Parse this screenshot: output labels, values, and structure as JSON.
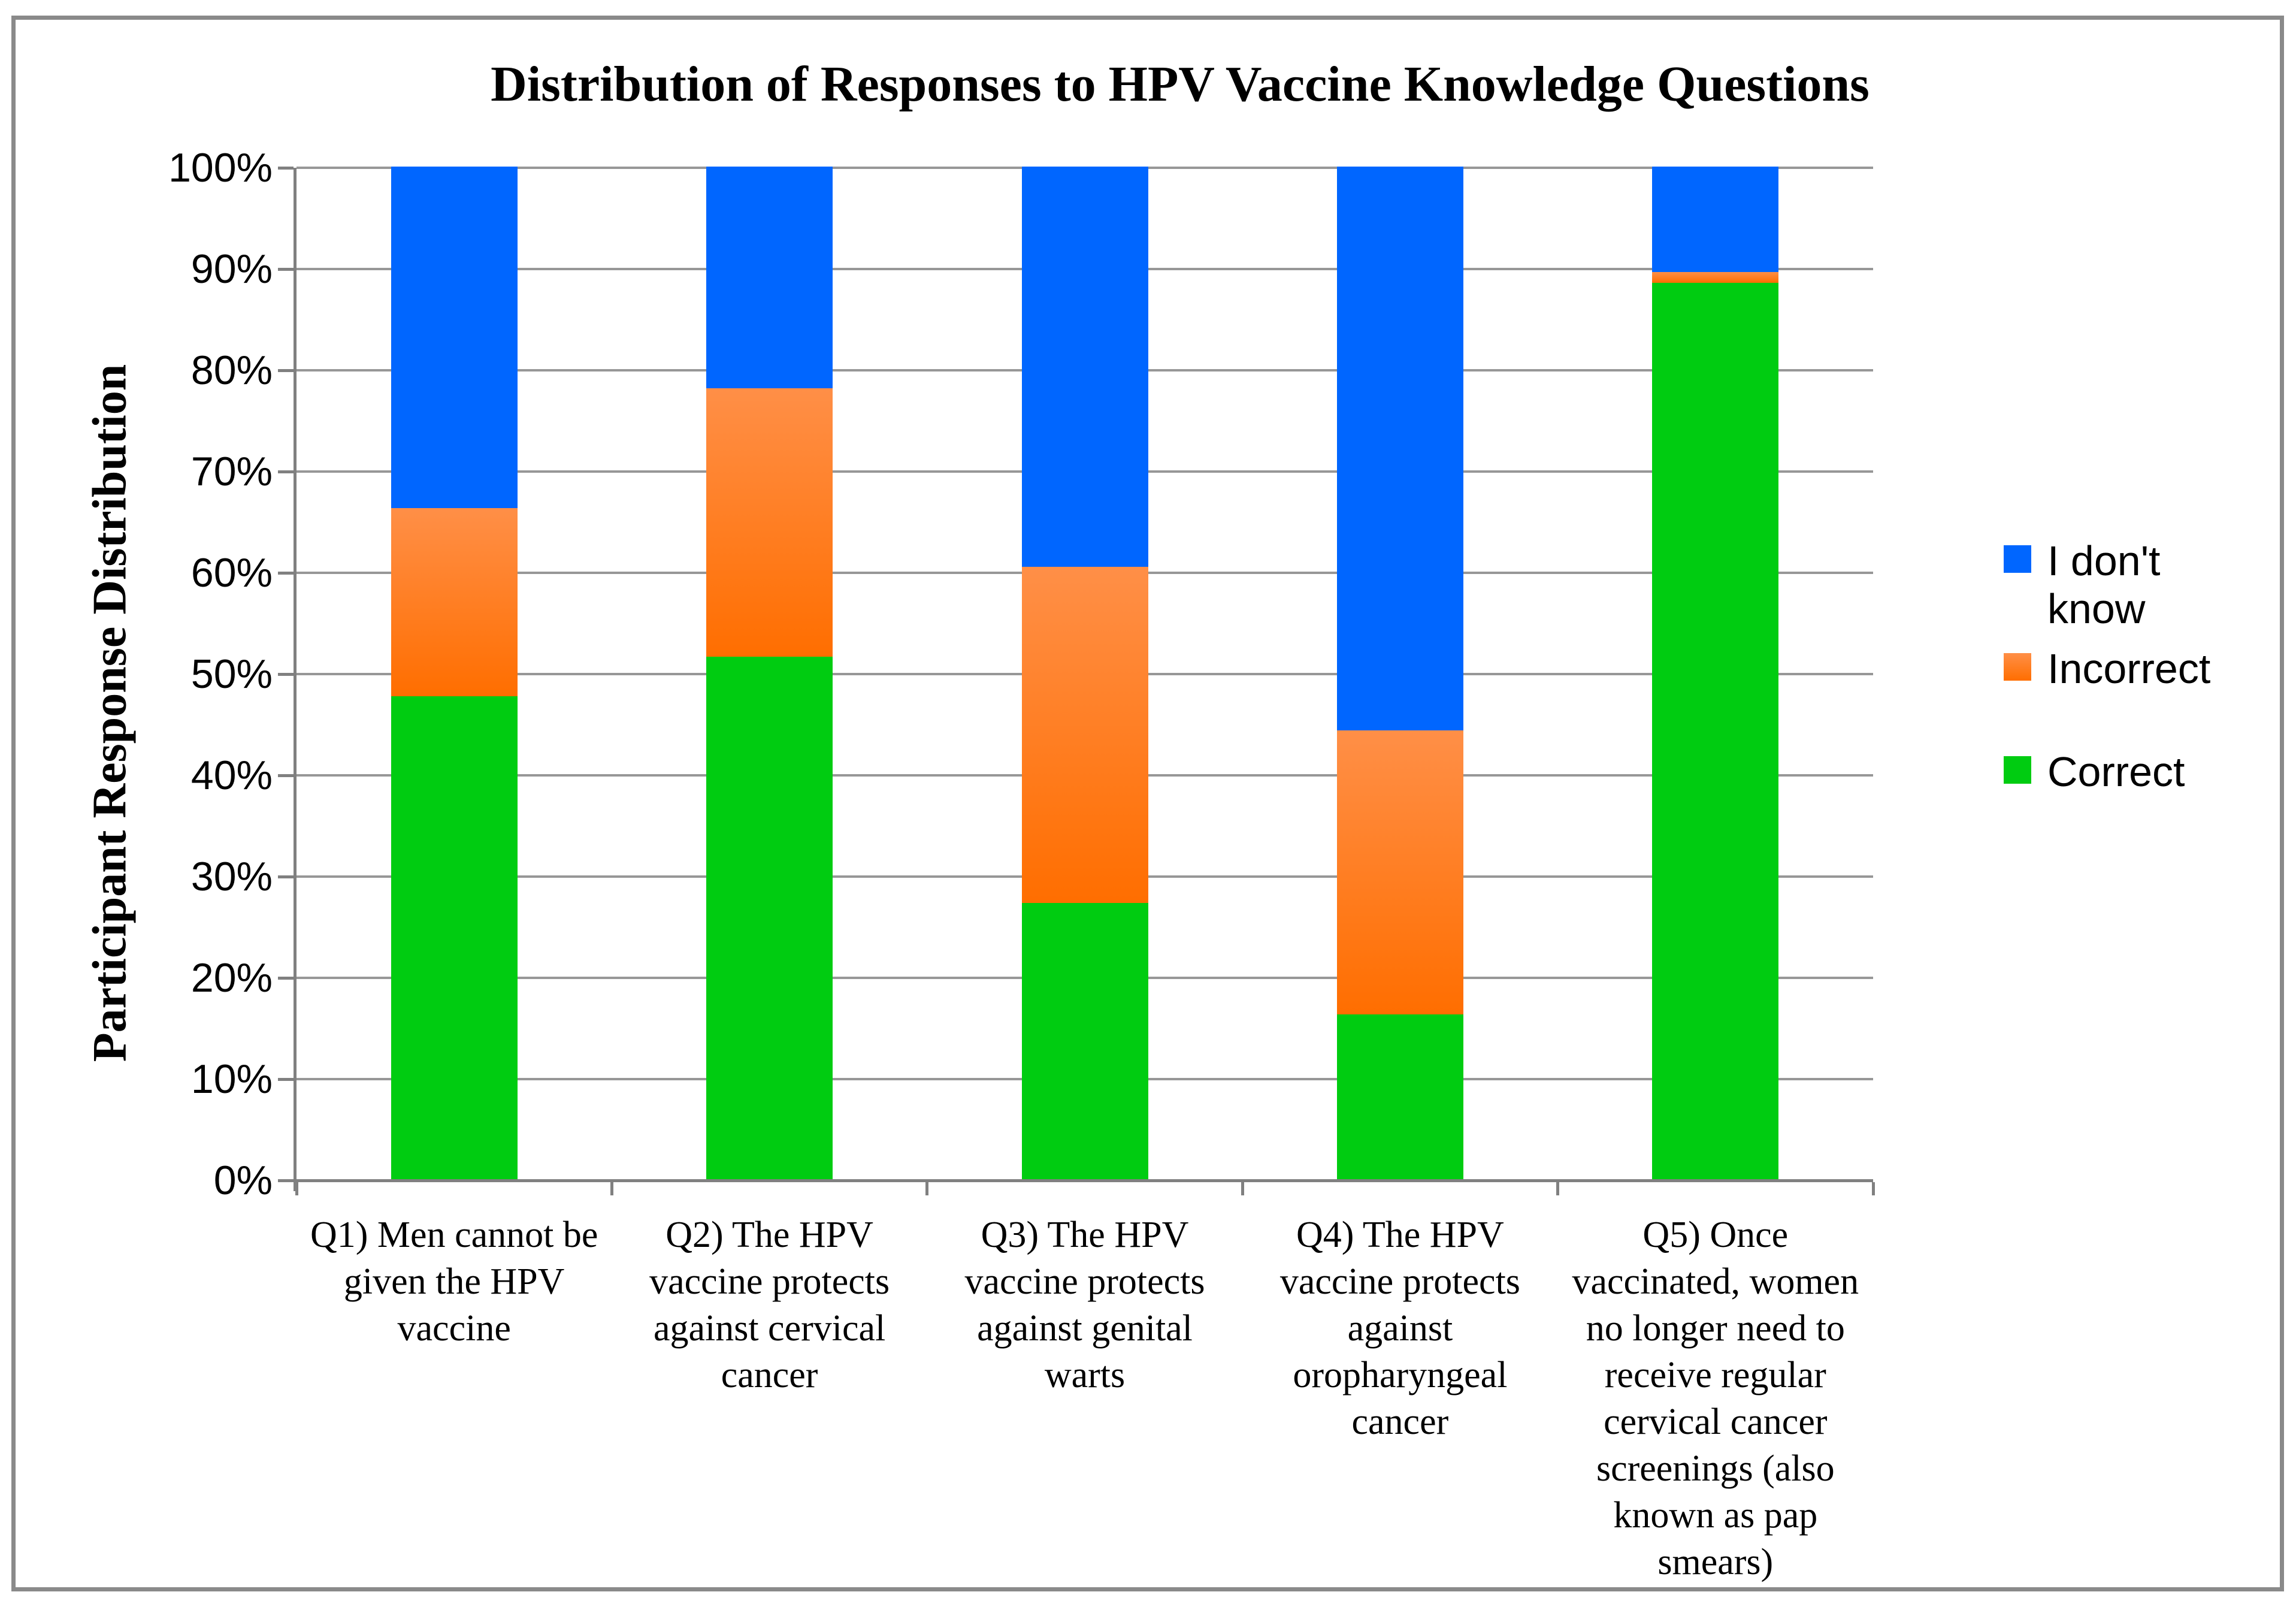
{
  "chart_data": {
    "type": "bar",
    "stacked": true,
    "title": "Distribution of Responses to HPV Vaccine Knowledge Questions",
    "ylabel": "Participant Response Distribution",
    "xlabel": "",
    "ylim": [
      0,
      100
    ],
    "y_ticks": [
      "0%",
      "10%",
      "20%",
      "30%",
      "40%",
      "50%",
      "60%",
      "70%",
      "80%",
      "90%",
      "100%"
    ],
    "grid": true,
    "legend_position": "right",
    "categories": [
      "Q1) Men cannot be\ngiven the HPV\nvaccine",
      "Q2) The HPV\nvaccine protects\nagainst cervical\ncancer",
      "Q3) The HPV\nvaccine protects\nagainst genital\nwarts",
      "Q4) The HPV\nvaccine protects\nagainst\noropharyngeal\ncancer",
      "Q5) Once\nvaccinated, women\nno longer need to\nreceive regular\ncervical cancer\nscreenings (also\nknown as pap\nsmears)"
    ],
    "series": [
      {
        "name": "Correct",
        "values": [
          47.7,
          51.6,
          27.3,
          16.3,
          88.5
        ],
        "color": "#00CC11"
      },
      {
        "name": "Incorrect",
        "values": [
          18.6,
          26.5,
          33.2,
          28.0,
          1.1
        ],
        "color": "#FF7A1A",
        "gradient": [
          "#FF8F47",
          "#FF6E00"
        ]
      },
      {
        "name": "I don't know",
        "values": [
          33.7,
          21.9,
          39.5,
          55.7,
          10.4
        ],
        "color": "#0066FF"
      }
    ],
    "legend": [
      {
        "label": "I don't\nknow",
        "series": "I don't know"
      },
      {
        "label": "Incorrect",
        "series": "Incorrect"
      },
      {
        "label": "Correct",
        "series": "Correct"
      }
    ],
    "colors": {
      "gridline": "#979797",
      "axis": "#808080",
      "border": "#8A8A8A",
      "text": "#000000"
    }
  }
}
